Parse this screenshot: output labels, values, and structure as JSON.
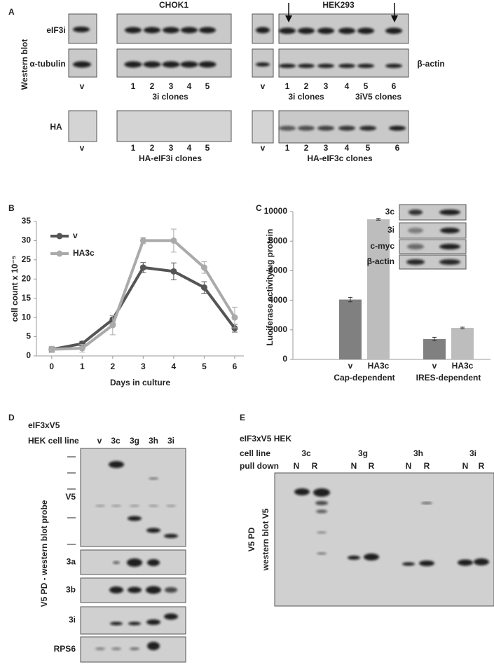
{
  "panel_labels": [
    "A",
    "B",
    "C",
    "D",
    "E"
  ],
  "panel_a": {
    "side_label": "Western blot",
    "chok1": {
      "title": "CHOK1",
      "rows": [
        "eIF3i",
        "α-tubulin",
        "HA"
      ],
      "lanes": [
        "v",
        "1",
        "2",
        "3",
        "4",
        "5"
      ],
      "group": "3i clones",
      "ha_lanes": [
        "v",
        "1",
        "2",
        "3",
        "4",
        "5"
      ],
      "ha_group": "HA-eIF3i clones"
    },
    "hek293": {
      "title": "HEK293",
      "row_right": "β-actin",
      "lanes": [
        "v",
        "1",
        "2",
        "3",
        "4",
        "5",
        "6"
      ],
      "groups": [
        "3i clones",
        "3iV5 clones"
      ],
      "ha_lanes": [
        "v",
        "1",
        "2",
        "3",
        "4",
        "5",
        "6"
      ],
      "ha_group": "HA-eIF3c clones"
    }
  },
  "chart_data": [
    {
      "type": "line",
      "x": [
        0,
        1,
        2,
        3,
        4,
        5,
        6
      ],
      "xlabel": "Days in culture",
      "ylabel": "cell count x 10⁻⁵",
      "xlim": [
        -0.5,
        6.3
      ],
      "xticks": [
        0,
        1,
        2,
        3,
        4,
        5,
        6
      ],
      "ylim": [
        0,
        35
      ],
      "yticks": [
        0,
        5,
        10,
        15,
        20,
        25,
        30,
        35
      ],
      "series": [
        {
          "name": "v",
          "color": "#555555",
          "values": [
            1.7,
            3.2,
            9.5,
            23,
            22,
            17.8,
            7.2
          ],
          "errors": [
            0.6,
            0.6,
            1,
            1.3,
            2.2,
            1.5,
            1
          ]
        },
        {
          "name": "HA3c",
          "color": "#aaaaaa",
          "values": [
            1.7,
            2,
            8,
            30,
            30,
            23,
            10
          ],
          "errors": [
            0.8,
            1,
            2.5,
            0.8,
            3,
            1.5,
            2.7
          ]
        }
      ]
    },
    {
      "type": "bar",
      "categories": [
        "Cap-dependent",
        "IRES-dependent"
      ],
      "ylabel": "Luciferase activity/ug protein",
      "ylim": [
        0,
        10000
      ],
      "yticks": [
        0,
        2000,
        4000,
        6000,
        8000,
        10000
      ],
      "series": [
        {
          "name": "v",
          "color": "#808080",
          "values": [
            4050,
            1380
          ],
          "errors": [
            150,
            120
          ]
        },
        {
          "name": "HA3c",
          "color": "#bdbdbd",
          "values": [
            9480,
            2130
          ],
          "errors": [
            60,
            50
          ]
        }
      ]
    }
  ],
  "panel_c_inset": {
    "rows": [
      "3c",
      "3i",
      "c-myc",
      "β-actin"
    ]
  },
  "panel_d": {
    "construct": "eIF3xV5",
    "row_label": "HEK cell line",
    "lanes": [
      "v",
      "3c",
      "3g",
      "3h",
      "3i"
    ],
    "side_label": "V5 PD - western blot probe",
    "probes": [
      "V5",
      "3a",
      "3b",
      "3i",
      "RPS6"
    ]
  },
  "panel_e": {
    "construct": "eIF3xV5 HEK",
    "row_labels": [
      "cell line",
      "pull down"
    ],
    "groups": [
      "3c",
      "3g",
      "3h",
      "3i"
    ],
    "pull_down": [
      "N",
      "R",
      "N",
      "R",
      "N",
      "R",
      "N",
      "R"
    ],
    "side_label": [
      "V5 PD",
      "western blot V5"
    ]
  }
}
